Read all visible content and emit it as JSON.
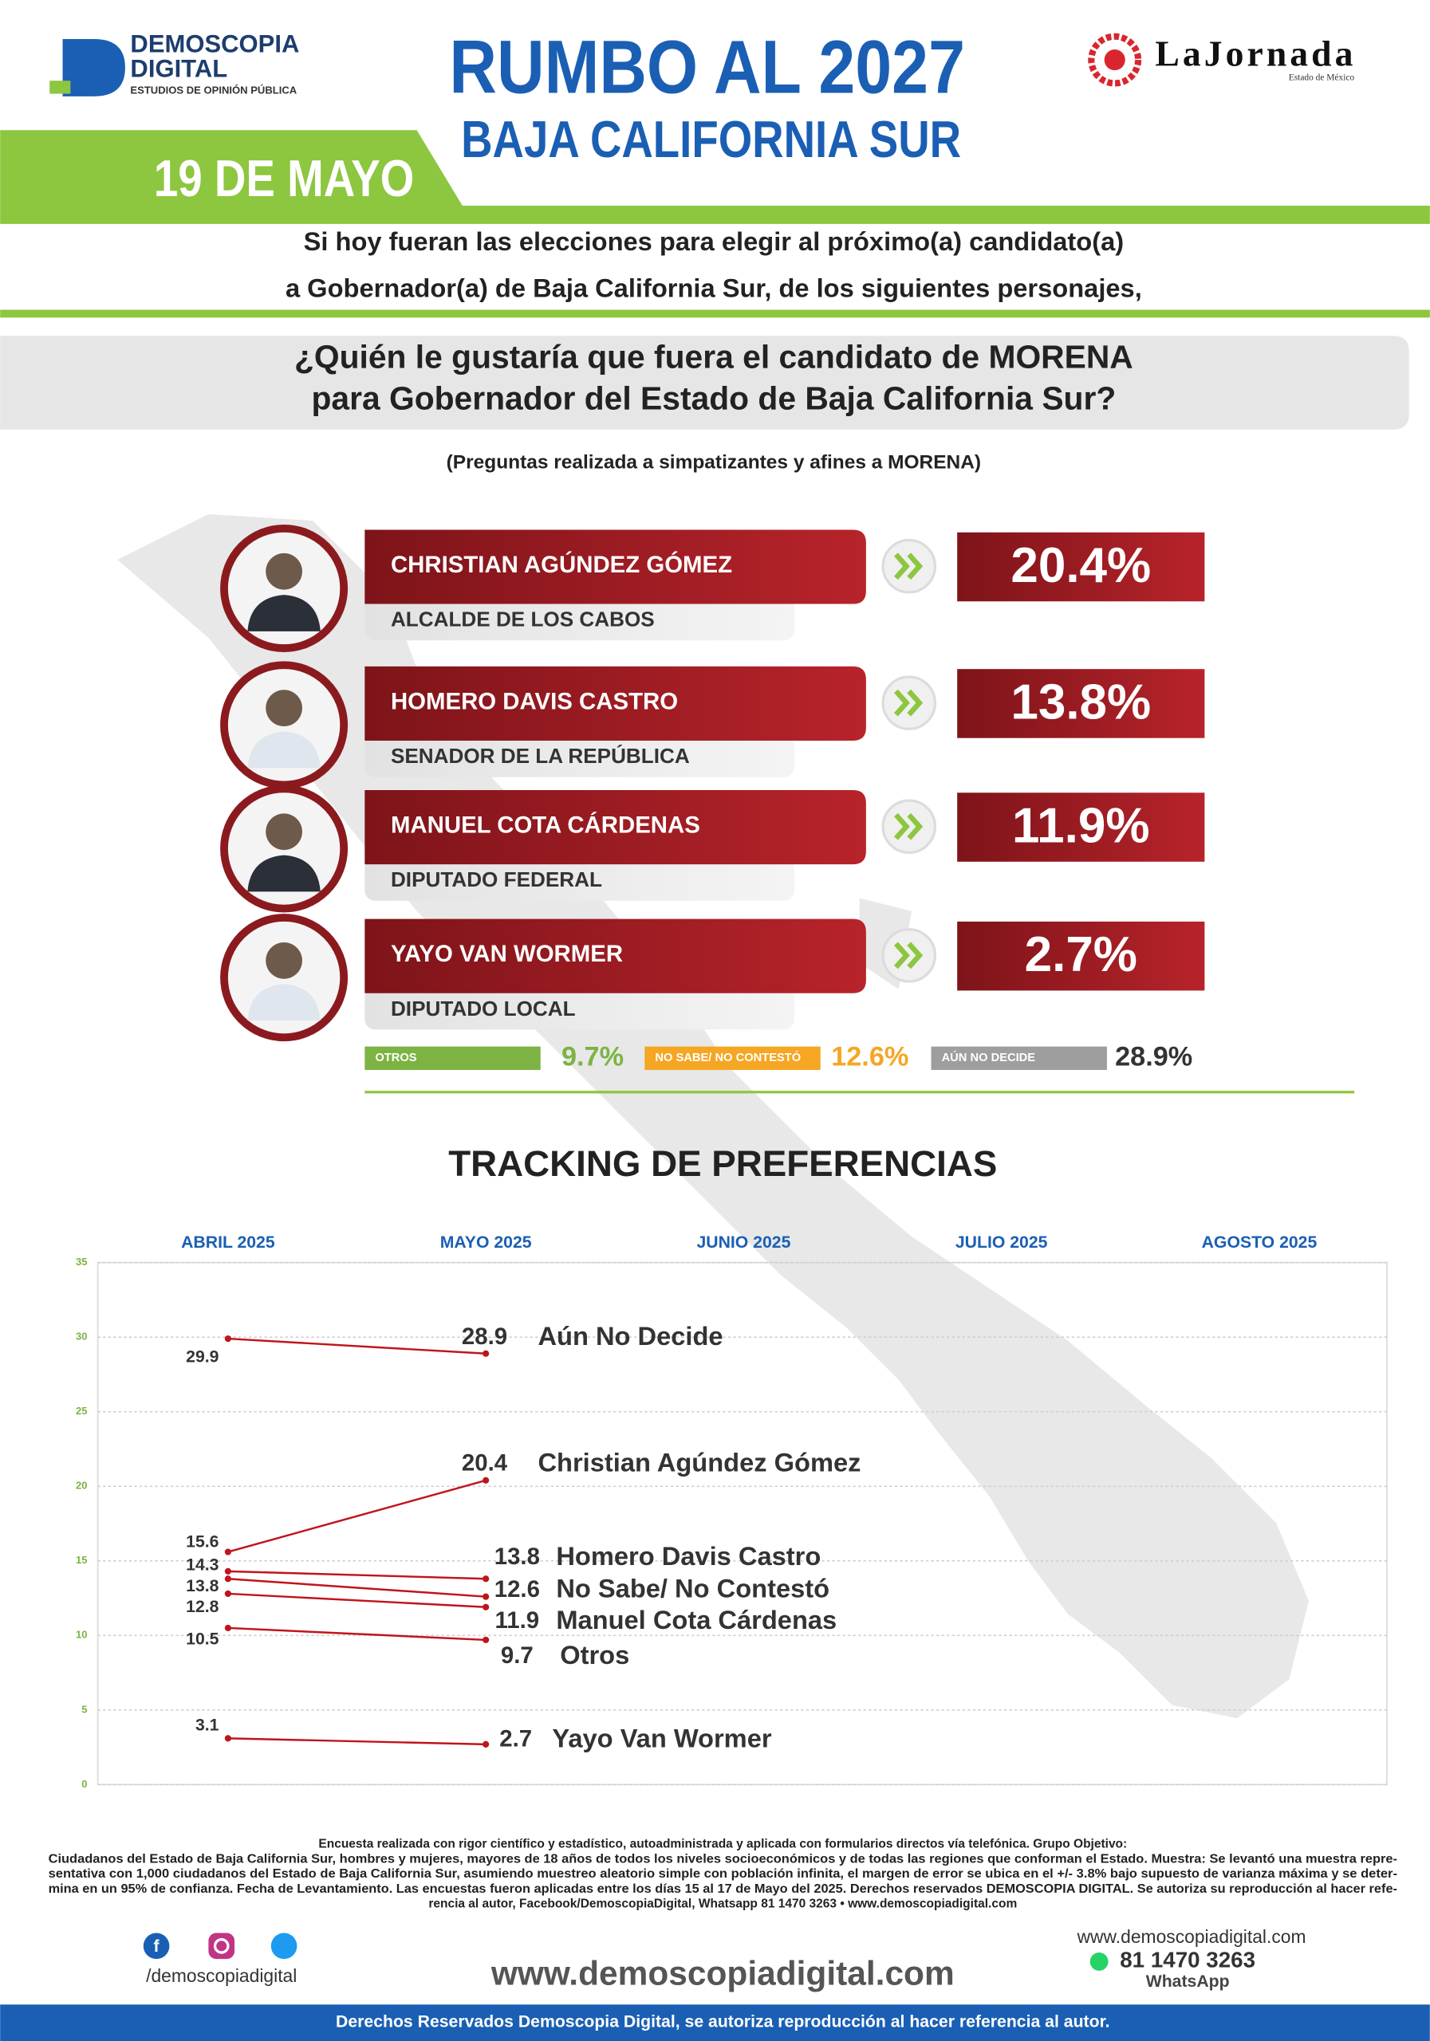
{
  "logo": {
    "name1": "DEMOSCOPIA",
    "name2": "DIGITAL",
    "tagline": "ESTUDIOS DE OPINIÓN PÚBLICA"
  },
  "partner": {
    "name": "LaJornada",
    "region": "Estado de México"
  },
  "header": {
    "title": "RUMBO AL 2027",
    "subtitle": "BAJA CALIFORNIA SUR",
    "date": "19 DE MAYO"
  },
  "intro": {
    "line1": "Si hoy fueran las elecciones para elegir al próximo(a) candidato(a)",
    "line2": "a Gobernador(a) de Baja California Sur, de los siguientes personajes,"
  },
  "question": {
    "line1": "¿Quién le gustaría que fuera el candidato de MORENA",
    "line2": "para Gobernador del Estado de Baja California Sur?",
    "note": "(Preguntas realizada a simpatizantes y afines a MORENA)"
  },
  "candidates": [
    {
      "name": "CHRISTIAN AGÚNDEZ GÓMEZ",
      "role": "ALCALDE DE LOS CABOS",
      "share": "20.4%"
    },
    {
      "name": "HOMERO DAVIS CASTRO",
      "role": "SENADOR DE LA REPÚBLICA",
      "share": "13.8%"
    },
    {
      "name": "MANUEL COTA CÁRDENAS",
      "role": "DIPUTADO FEDERAL",
      "share": "11.9%"
    },
    {
      "name": "YAYO VAN WORMER",
      "role": "DIPUTADO LOCAL",
      "share": "2.7%"
    }
  ],
  "others": [
    {
      "label": "OTROS",
      "share": "9.7%",
      "color": "#7cb342"
    },
    {
      "label": "NO SABE/ NO CONTESTÓ",
      "share": "12.6%",
      "color": "#f5a623"
    },
    {
      "label": "AÚN NO DECIDE",
      "share": "28.9%",
      "color": "#9e9e9e"
    }
  ],
  "chart_data": {
    "type": "line",
    "title": "TRACKING DE PREFERENCIAS",
    "categories": [
      "ABRIL 2025",
      "MAYO 2025",
      "JUNIO 2025",
      "JULIO 2025",
      "AGOSTO 2025"
    ],
    "ylim": [
      0,
      35
    ],
    "yticks": [
      0,
      5,
      10,
      15,
      20,
      25,
      30,
      35
    ],
    "grid": true,
    "series": [
      {
        "name": "Aún No Decide",
        "color": "#c0141c",
        "values": [
          29.9,
          28.9,
          null,
          null,
          null
        ]
      },
      {
        "name": "Christian Agúndez Gómez",
        "color": "#c0141c",
        "values": [
          15.6,
          20.4,
          null,
          null,
          null
        ]
      },
      {
        "name": "Homero Davis Castro",
        "color": "#c0141c",
        "values": [
          14.3,
          13.8,
          null,
          null,
          null
        ]
      },
      {
        "name": "No Sabe/ No Contestó",
        "color": "#c0141c",
        "values": [
          13.8,
          12.6,
          null,
          null,
          null
        ]
      },
      {
        "name": "Manuel Cota Cárdenas",
        "color": "#c0141c",
        "values": [
          12.8,
          11.9,
          null,
          null,
          null
        ]
      },
      {
        "name": "Otros",
        "color": "#c0141c",
        "values": [
          10.5,
          9.7,
          null,
          null,
          null
        ]
      },
      {
        "name": "Yayo Van Wormer",
        "color": "#c0141c",
        "values": [
          3.1,
          2.7,
          null,
          null,
          null
        ]
      }
    ]
  },
  "footer": {
    "disclaimer": [
      "Encuesta realizada con rigor científico y estadístico, autoadministrada y aplicada con formularios directos vía telefónica. Grupo Objetivo:",
      "Ciudadanos del Estado de Baja California Sur, hombres y mujeres, mayores de 18 años de todos los niveles socioeconómicos y de todas las regiones que conforman el Estado. Muestra: Se levantó una muestra repre-",
      "sentativa con 1,000 ciudadanos del Estado de Baja California Sur, asumiendo muestreo aleatorio simple con población infinita, el margen de error se ubica en el +/- 3.8% bajo supuesto de varianza máxima y se deter-",
      "mina en un 95% de confianza. Fecha de Levantamiento. Las encuestas fueron aplicadas entre los días 15 al 17 de Mayo del 2025. Derechos reservados DEMOSCOPIA DIGITAL. Se autoriza su reproducción al hacer refe-",
      "rencia al autor, Facebook/DemoscopiaDigital, Whatsapp 81 1470 3263 • www.demoscopiadigital.com"
    ],
    "handle": "/demoscopiadigital",
    "website": "www.demoscopiadigital.com",
    "contact_site": "www.demoscopiadigital.com",
    "phone": "81 1470 3263",
    "phone_label": "WhatsApp",
    "rights": "Derechos Reservados Demoscopia Digital, se autoriza reproducción al hacer referencia al autor."
  }
}
